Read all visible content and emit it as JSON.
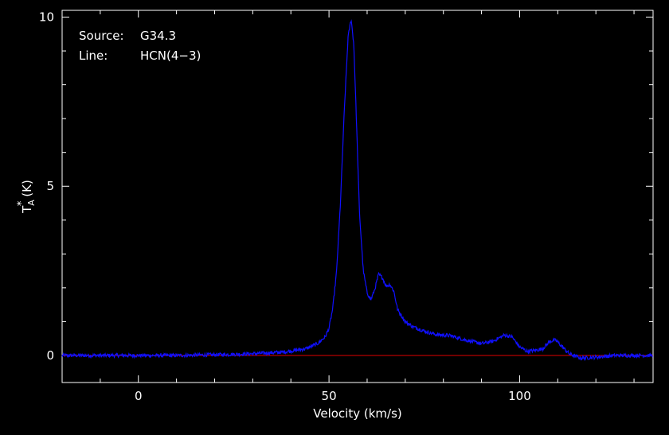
{
  "info": {
    "source_label": "Source:",
    "source_value": "G34.3",
    "line_label": "Line:",
    "line_value": "HCN(4−3)"
  },
  "chart_data": {
    "type": "line",
    "title": "",
    "xlabel": "Velocity (km/s)",
    "ylabel": "T",
    "ylabel_sub": "A",
    "ylabel_sup": "*",
    "ylabel_unit": "(K)",
    "xlim": [
      -20,
      135
    ],
    "ylim": [
      -0.8,
      10.2
    ],
    "xticks": [
      0,
      50,
      100
    ],
    "xtick_labels": [
      "0",
      "50",
      "100"
    ],
    "yticks": [
      0,
      5,
      10
    ],
    "ytick_labels": [
      "0",
      "5",
      "10"
    ],
    "grid": false,
    "colors": {
      "spectrum": "#1010ff",
      "baseline": "#e00000",
      "axes": "#ffffff"
    },
    "series": [
      {
        "x": [
          -20,
          -10,
          0,
          10,
          20,
          30,
          38,
          44,
          47,
          49,
          50,
          51,
          52,
          53,
          54,
          55,
          55.8,
          56.5,
          57,
          58,
          59,
          60,
          61,
          62,
          63,
          64,
          65,
          66,
          67,
          68,
          70,
          72,
          75,
          78,
          82,
          86,
          90,
          93,
          96,
          98,
          100,
          102,
          104,
          106,
          108,
          109.5,
          111,
          113,
          116,
          120,
          125,
          130,
          135
        ],
        "values": [
          0.0,
          0.0,
          0.0,
          0.0,
          0.02,
          0.05,
          0.1,
          0.2,
          0.35,
          0.55,
          0.8,
          1.4,
          2.5,
          4.5,
          7.2,
          9.4,
          9.95,
          9.2,
          7.6,
          4.2,
          2.5,
          1.85,
          1.65,
          1.95,
          2.4,
          2.3,
          2.05,
          2.1,
          1.9,
          1.35,
          1.0,
          0.85,
          0.72,
          0.62,
          0.58,
          0.45,
          0.35,
          0.42,
          0.6,
          0.55,
          0.25,
          0.12,
          0.15,
          0.2,
          0.42,
          0.45,
          0.28,
          0.05,
          -0.08,
          -0.05,
          0.0,
          0.0,
          0.0
        ]
      }
    ],
    "baseline": 0
  }
}
